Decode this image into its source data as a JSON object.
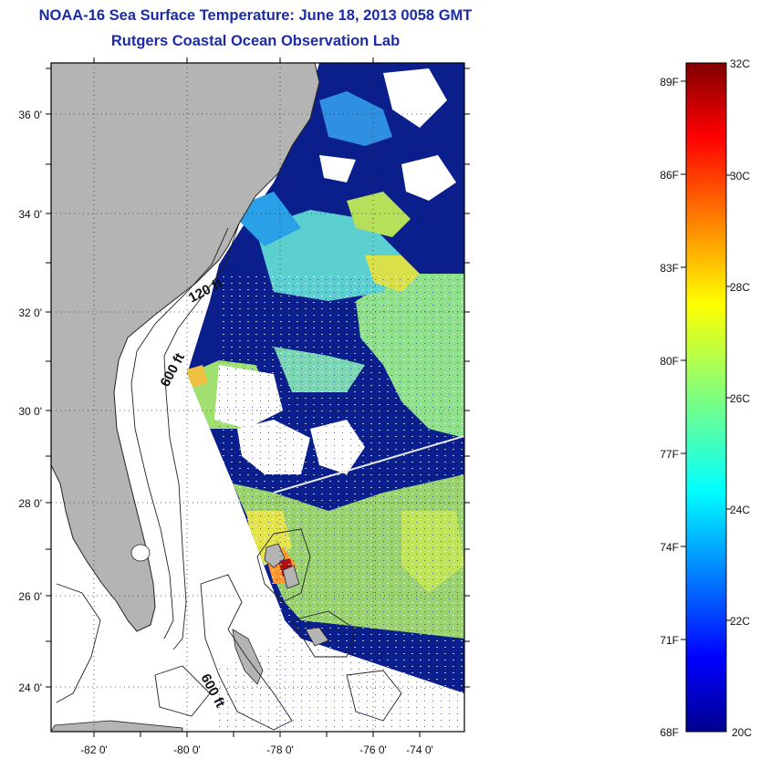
{
  "title": {
    "line1": "NOAA-16 Sea Surface Temperature:  June 18, 2013 0058 GMT",
    "line2": "Rutgers Coastal Ocean Observation Lab"
  },
  "map": {
    "lat_labels": [
      "36 0'",
      "34 0'",
      "32 0'",
      "30 0'",
      "28 0'",
      "26 0'",
      "24 0'"
    ],
    "lon_labels": [
      "-82 0'",
      "-80 0'",
      "-78 0'",
      "-76 0'",
      "-74 0'"
    ],
    "contour_labels": [
      "120 ft",
      "600 ft",
      "600 ft"
    ],
    "colors": {
      "land": "#b4b4b4",
      "cloud_mask": "#ffffff",
      "cold_water": "#0a1e8c"
    }
  },
  "colorbar": {
    "celsius_labels": [
      "32C",
      "30C",
      "28C",
      "26C",
      "24C",
      "22C",
      "20C"
    ],
    "fahrenheit_labels": [
      "89F",
      "86F",
      "83F",
      "80F",
      "77F",
      "74F",
      "71F",
      "68F"
    ],
    "range_c": [
      20,
      32
    ],
    "colormap": "jet"
  }
}
